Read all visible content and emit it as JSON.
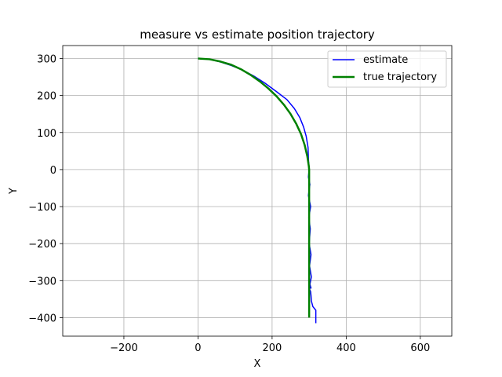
{
  "chart_data": {
    "type": "line",
    "title": "measure vs estimate position trajectory",
    "xlabel": "X",
    "ylabel": "Y",
    "xlim": [
      -365,
      685
    ],
    "ylim": [
      -450,
      335
    ],
    "xticks": [
      -200,
      0,
      200,
      400,
      600
    ],
    "yticks": [
      300,
      200,
      100,
      0,
      -100,
      -200,
      -300,
      -400
    ],
    "xtick_labels": [
      "−200",
      "0",
      "200",
      "400",
      "600"
    ],
    "ytick_labels": [
      "300",
      "200",
      "100",
      "0",
      "−100",
      "−200",
      "−300",
      "−400"
    ],
    "grid": true,
    "legend_position": "top-right",
    "series": [
      {
        "name": "estimate",
        "color": "#0000ff",
        "x": [
          0,
          30,
          60,
          90,
          120,
          150,
          180,
          210,
          240,
          260,
          275,
          285,
          292,
          297,
          298,
          300,
          298,
          302,
          298,
          304,
          299,
          303,
          300,
          305,
          301,
          306,
          302,
          305,
          300,
          304,
          305,
          306,
          310,
          318,
          318
        ],
        "y": [
          300,
          298,
          291,
          281,
          269,
          253,
          234,
          212,
          189,
          165,
          140,
          115,
          90,
          60,
          30,
          0,
          -20,
          -40,
          -70,
          -100,
          -130,
          -160,
          -200,
          -230,
          -260,
          -290,
          -310,
          -320,
          -320,
          -330,
          -340,
          -355,
          -370,
          -380,
          -415
        ]
      },
      {
        "name": "true trajectory",
        "color": "#008000",
        "x": [
          0,
          31,
          60,
          90,
          118,
          143,
          167,
          190,
          212,
          232,
          250,
          265,
          278,
          288,
          295,
          299,
          300,
          300,
          300,
          300,
          300
        ],
        "y": [
          300,
          298,
          292,
          283,
          270,
          255,
          238,
          219,
          198,
          175,
          150,
          124,
          96,
          66,
          36,
          10,
          0,
          -100,
          -200,
          -300,
          -400
        ]
      }
    ]
  }
}
